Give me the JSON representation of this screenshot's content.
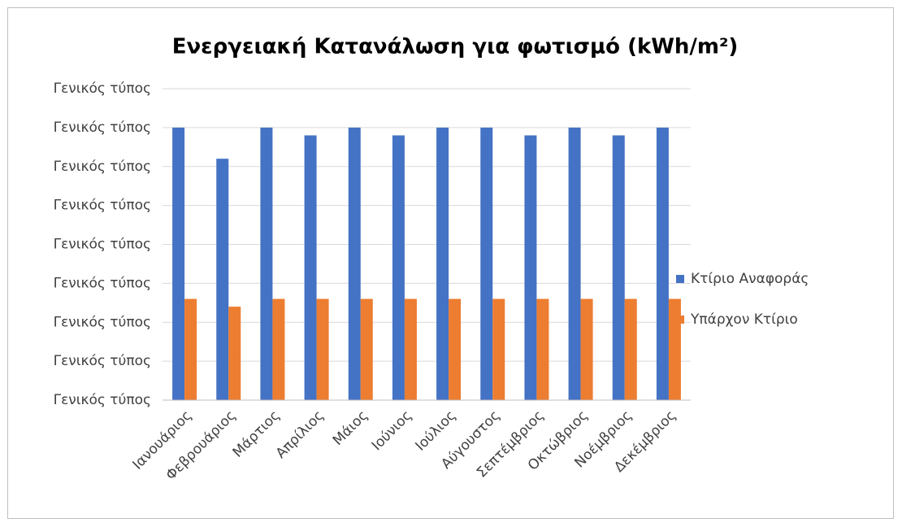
{
  "chart_data": {
    "type": "bar",
    "title": "Ενεργειακή Κατανάλωση για φωτισμό (kWh/m²)",
    "categories": [
      "Ιανουάριος",
      "Φεβρουάριος",
      "Μάρτιος",
      "Απρίλιος",
      "Μάιος",
      "Ιούνιος",
      "Ιούλιος",
      "Αύγουστος",
      "Σεπτέμβριος",
      "Οκτώβριος",
      "Νοέμβριος",
      "Δεκέμβριος"
    ],
    "series": [
      {
        "name": "Κτίριο Αναφοράς",
        "color": "#4472c4",
        "values": [
          7,
          6.2,
          7,
          6.8,
          7,
          6.8,
          7,
          7,
          6.8,
          7,
          6.8,
          7
        ]
      },
      {
        "name": "Υπάρχον Κτίριο",
        "color": "#ed7d31",
        "values": [
          2.6,
          2.4,
          2.6,
          2.6,
          2.6,
          2.6,
          2.6,
          2.6,
          2.6,
          2.6,
          2.6,
          2.6
        ]
      }
    ],
    "ylim": [
      0,
      8
    ],
    "yticks": [
      {
        "value": 0,
        "label": "Γενικός τύπος"
      },
      {
        "value": 1,
        "label": "Γενικός τύπος"
      },
      {
        "value": 2,
        "label": "Γενικός τύπος"
      },
      {
        "value": 3,
        "label": "Γενικός τύπος"
      },
      {
        "value": 4,
        "label": "Γενικός τύπος"
      },
      {
        "value": 5,
        "label": "Γενικός τύπος"
      },
      {
        "value": 6,
        "label": "Γενικός τύπος"
      },
      {
        "value": 7,
        "label": "Γενικός τύπος"
      },
      {
        "value": 8,
        "label": "Γενικός τύπος"
      }
    ],
    "grid": true,
    "legend": "right"
  }
}
